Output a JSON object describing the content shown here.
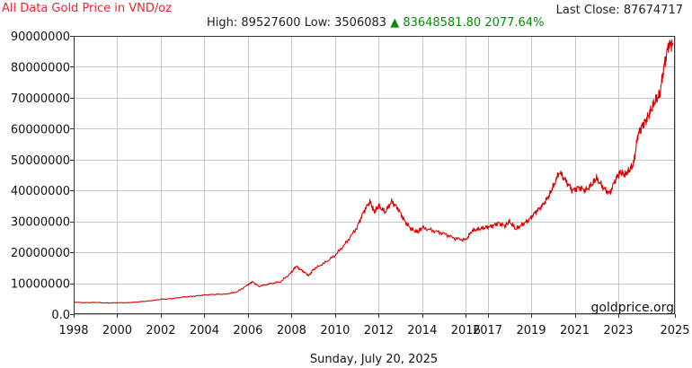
{
  "header": {
    "title": "All Data Gold Price in VND/oz",
    "high_label": "High:",
    "high_value": "89527600",
    "low_label": "Low:",
    "low_value": "3506083",
    "change_arrow": "▲",
    "change_value": "83648581.80",
    "change_percent": "2077.64%",
    "last_close_label": "Last Close:",
    "last_close_value": "87674717"
  },
  "footer": {
    "date": "Sunday, July 20, 2025",
    "watermark": "goldprice.org"
  },
  "colors": {
    "line": "#e00000",
    "title": "#e8262e",
    "change": "#0a8a0a",
    "grid": "#c8c8c8"
  },
  "chart_data": {
    "type": "line",
    "title": "All Data Gold Price in VND/oz",
    "xlabel": "",
    "ylabel": "",
    "grid": true,
    "legend": "none",
    "xlim": [
      1998.0,
      2025.6
    ],
    "ylim": [
      0,
      90000000
    ],
    "x_ticks": [
      1998.0,
      2000.0,
      2002.0,
      2004.0,
      2006.0,
      2008.0,
      2010.0,
      2012.0,
      2014.0,
      2016.0,
      2017.0,
      2019.0,
      2021.0,
      2023.0,
      2025.6
    ],
    "x_tick_labels": [
      "1998",
      "2000",
      "2002",
      "2004",
      "2006",
      "2008",
      "2010",
      "2012",
      "2014",
      "2016",
      "2017",
      "2019",
      "2021",
      "2023",
      "2025"
    ],
    "y_ticks": [
      0,
      10000000,
      20000000,
      30000000,
      40000000,
      50000000,
      60000000,
      70000000,
      80000000,
      90000000
    ],
    "y_tick_labels": [
      "0.0",
      "10000000",
      "20000000",
      "30000000",
      "40000000",
      "50000000",
      "60000000",
      "70000000",
      "80000000",
      "90000000"
    ],
    "series": [
      {
        "x": [
          1998.0,
          1998.5,
          1999.0,
          1999.5,
          2000.0,
          2000.5,
          2001.0,
          2001.5,
          2002.0,
          2002.5,
          2003.0,
          2003.5,
          2004.0,
          2004.5,
          2005.0,
          2005.5,
          2006.0,
          2006.2,
          2006.5,
          2007.0,
          2007.5,
          2008.0,
          2008.2,
          2008.5,
          2008.8,
          2009.0,
          2009.5,
          2010.0,
          2010.5,
          2011.0,
          2011.3,
          2011.6,
          2011.8,
          2012.0,
          2012.3,
          2012.6,
          2012.9,
          2013.2,
          2013.5,
          2013.8,
          2014.0,
          2014.5,
          2015.0,
          2015.5,
          2016.0,
          2016.3,
          2016.6,
          2016.9,
          2017.2,
          2017.5,
          2017.8,
          2018.0,
          2018.3,
          2018.6,
          2018.9,
          2019.2,
          2019.5,
          2019.8,
          2020.0,
          2020.3,
          2020.6,
          2020.9,
          2021.2,
          2021.5,
          2021.8,
          2022.0,
          2022.3,
          2022.6,
          2022.9,
          2023.1,
          2023.3,
          2023.5,
          2023.7,
          2023.9,
          2024.1,
          2024.3,
          2024.5,
          2024.7,
          2024.9,
          2025.1,
          2025.3,
          2025.5
        ],
        "values": [
          3900000,
          3700000,
          3800000,
          3600000,
          3700000,
          3700000,
          4000000,
          4300000,
          4800000,
          5000000,
          5500000,
          5800000,
          6200000,
          6400000,
          6500000,
          7200000,
          9500000,
          10500000,
          9000000,
          9800000,
          10500000,
          13500000,
          15500000,
          14000000,
          12500000,
          14500000,
          16500000,
          19000000,
          23000000,
          28000000,
          33000000,
          36500000,
          33000000,
          35000000,
          33000000,
          36500000,
          34000000,
          30000000,
          27500000,
          26500000,
          28000000,
          27000000,
          26000000,
          24500000,
          24000000,
          27000000,
          27500000,
          28000000,
          28500000,
          29500000,
          28500000,
          30000000,
          27500000,
          29000000,
          30500000,
          33000000,
          35000000,
          38000000,
          41000000,
          46000000,
          43000000,
          40000000,
          41000000,
          40000000,
          42000000,
          44000000,
          41000000,
          39000000,
          44000000,
          46000000,
          45000000,
          46500000,
          48500000,
          58000000,
          61000000,
          63000000,
          66000000,
          69000000,
          71000000,
          80000000,
          87000000,
          87674717
        ]
      }
    ]
  }
}
